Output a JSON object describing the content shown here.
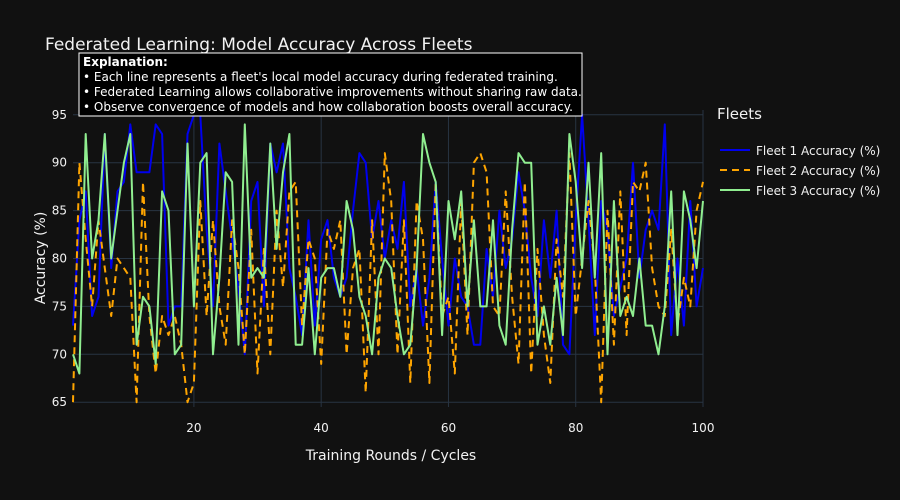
{
  "chart_data": {
    "type": "line",
    "title": "Federated Learning: Model Accuracy Across Fleets",
    "xlabel": "Training Rounds / Cycles",
    "ylabel": "Accuracy (%)",
    "xlim": [
      1,
      100
    ],
    "ylim": [
      64.5,
      95.5
    ],
    "x_ticks": [
      20,
      40,
      60,
      80,
      100
    ],
    "y_ticks": [
      65,
      70,
      75,
      80,
      85,
      90,
      95
    ],
    "grid": true,
    "legend_title": "Fleets",
    "legend_position": "right",
    "annotation": {
      "title": "Explanation:",
      "lines": [
        "• Each line represents a fleet's local model accuracy during federated training.",
        "• Federated Learning allows collaborative improvements without sharing raw data.",
        "• Observe convergence of models and how collaboration boosts overall accuracy."
      ]
    },
    "x": [
      1,
      2,
      3,
      4,
      5,
      6,
      7,
      8,
      9,
      10,
      11,
      12,
      13,
      14,
      15,
      16,
      17,
      18,
      19,
      20,
      21,
      22,
      23,
      24,
      25,
      26,
      27,
      28,
      29,
      30,
      31,
      32,
      33,
      34,
      35,
      36,
      37,
      38,
      39,
      40,
      41,
      42,
      43,
      44,
      45,
      46,
      47,
      48,
      49,
      50,
      51,
      52,
      53,
      54,
      55,
      56,
      57,
      58,
      59,
      60,
      61,
      62,
      63,
      64,
      65,
      66,
      67,
      68,
      69,
      70,
      71,
      72,
      73,
      74,
      75,
      76,
      77,
      78,
      79,
      80,
      81,
      82,
      83,
      84,
      85,
      86,
      87,
      88,
      89,
      90,
      91,
      92,
      93,
      94,
      95,
      96,
      97,
      98,
      99,
      100
    ],
    "series": [
      {
        "name": "Fleet 1 Accuracy (%)",
        "color": "#0000ee",
        "dash": "solid",
        "values": [
          73,
          84,
          87,
          74,
          76,
          93,
          79,
          87,
          88,
          94,
          89,
          89,
          89,
          94,
          93,
          73,
          75,
          75,
          93,
          95,
          95,
          83,
          75,
          92,
          87,
          82,
          77,
          70,
          86,
          88,
          75,
          92,
          89,
          92,
          79,
          76,
          72,
          84,
          73,
          82,
          84,
          78,
          76,
          78,
          85,
          91,
          90,
          82,
          86,
          80,
          84,
          81,
          88,
          75,
          79,
          73,
          78,
          88,
          80,
          73,
          80,
          76,
          75,
          71,
          71,
          81,
          76,
          85,
          79,
          82,
          89,
          85,
          78,
          74,
          84,
          78,
          85,
          71,
          70,
          84,
          95,
          84,
          72,
          86,
          83,
          74,
          77,
          80,
          90,
          78,
          83,
          85,
          83,
          94,
          72,
          80,
          73,
          86,
          75,
          79
        ]
      },
      {
        "name": "Fleet 2 Accuracy (%)",
        "color": "#ffa500",
        "dash": "dash",
        "values": [
          65,
          90,
          82,
          75,
          84,
          79,
          74,
          80,
          79,
          78,
          65,
          88,
          74,
          68,
          74,
          72,
          74,
          71,
          65,
          67,
          86,
          74,
          84,
          75,
          71,
          84,
          79,
          70,
          83,
          68,
          81,
          70,
          85,
          77,
          87,
          88,
          73,
          82,
          80,
          69,
          83,
          81,
          84,
          70,
          79,
          81,
          66,
          84,
          70,
          91,
          86,
          70,
          84,
          67,
          86,
          82,
          67,
          88,
          74,
          76,
          68,
          86,
          72,
          90,
          91,
          89,
          75,
          74,
          87,
          76,
          69,
          88,
          68,
          81,
          72,
          67,
          82,
          76,
          91,
          74,
          80,
          86,
          79,
          65,
          85,
          71,
          87,
          72,
          88,
          87,
          90,
          79,
          75,
          74,
          83,
          73,
          78,
          75,
          85,
          88
        ]
      },
      {
        "name": "Fleet 3 Accuracy (%)",
        "color": "#90ee90",
        "dash": "solid",
        "values": [
          70,
          68,
          93,
          80,
          84,
          93,
          80,
          85,
          90,
          93,
          71,
          76,
          75,
          69,
          87,
          85,
          70,
          71,
          92,
          75,
          90,
          91,
          70,
          78,
          89,
          88,
          71,
          94,
          78,
          79,
          78,
          92,
          81,
          89,
          93,
          71,
          71,
          79,
          70,
          78,
          79,
          79,
          76,
          86,
          83,
          76,
          74,
          70,
          78,
          80,
          79,
          74,
          70,
          71,
          79,
          93,
          90,
          88,
          72,
          86,
          82,
          87,
          75,
          84,
          75,
          75,
          84,
          73,
          71,
          83,
          91,
          90,
          90,
          71,
          75,
          71,
          78,
          72,
          93,
          88,
          79,
          90,
          78,
          91,
          70,
          86,
          74,
          76,
          74,
          80,
          73,
          73,
          70,
          75,
          87,
          72,
          87,
          84,
          79,
          86
        ]
      }
    ]
  }
}
